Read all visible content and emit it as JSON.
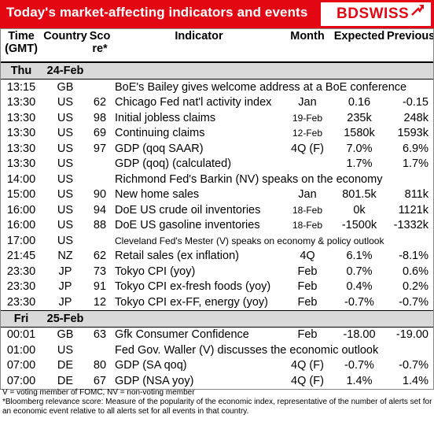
{
  "title": "Today's market-affecting indicators and events",
  "logo": "BDSWISS",
  "colors": {
    "brand_red": "#e30613",
    "day_bg": "#d9d9d9"
  },
  "columns": {
    "time_a": "Time",
    "time_b": "(GMT)",
    "country": "Country",
    "score_a": "Sco",
    "score_b": "re*",
    "indicator": "Indicator",
    "month": "Month",
    "expected": "Expected",
    "previous": "Previous"
  },
  "days": [
    {
      "dow": "Thu",
      "date": "24-Feb",
      "rows": [
        {
          "time": "13:15",
          "country": "GB",
          "score": "",
          "indicator": "BoE's Bailey gives welcome address at a BoE conference",
          "month": "",
          "expected": "",
          "previous": "",
          "span": true
        },
        {
          "time": "13:30",
          "country": "US",
          "score": "62",
          "indicator": "Chicago Fed nat'l activity index",
          "month": "Jan",
          "expected": "0.16",
          "previous": "-0.15"
        },
        {
          "time": "13:30",
          "country": "US",
          "score": "98",
          "indicator": "Initial jobless claims",
          "month": "19-Feb",
          "expected": "235k",
          "previous": "248k",
          "small": true
        },
        {
          "time": "13:30",
          "country": "US",
          "score": "69",
          "indicator": "Continuing claims",
          "month": "12-Feb",
          "expected": "1580k",
          "previous": "1593k",
          "small": true
        },
        {
          "time": "13:30",
          "country": "US",
          "score": "97",
          "indicator": "GDP (qoq SAAR)",
          "month": "4Q (F)",
          "expected": "7.0%",
          "previous": "6.9%"
        },
        {
          "time": "13:30",
          "country": "US",
          "score": "",
          "indicator": "GDP (qoq) (calculated)",
          "month": "",
          "expected": "1.7%",
          "previous": "1.7%"
        },
        {
          "time": "14:00",
          "country": "US",
          "score": "",
          "indicator": "Richmond Fed's Barkin (NV) speaks on the economy",
          "month": "",
          "expected": "",
          "previous": "",
          "span": true
        },
        {
          "time": "15:00",
          "country": "US",
          "score": "90",
          "indicator": "New home sales",
          "month": "Jan",
          "expected": "801.5k",
          "previous": "811k"
        },
        {
          "time": "16:00",
          "country": "US",
          "score": "94",
          "indicator": "DoE US crude oil inventories",
          "month": "18-Feb",
          "expected": "0k",
          "previous": "1121k",
          "small": true
        },
        {
          "time": "16:00",
          "country": "US",
          "score": "88",
          "indicator": "DoE US gasoline inventories",
          "month": "18-Feb",
          "expected": "-1500k",
          "previous": "-1332k",
          "small": true
        },
        {
          "time": "17:00",
          "country": "US",
          "score": "",
          "indicator": "Cleveland Fed's Mester (V) speaks on economy & policy outlook",
          "month": "",
          "expected": "",
          "previous": "",
          "span": true,
          "spansmall": true
        },
        {
          "time": "21:45",
          "country": "NZ",
          "score": "62",
          "indicator": "Retail sales (ex inflation)",
          "month": "4Q",
          "expected": "6.1%",
          "previous": "-8.1%"
        },
        {
          "time": "23:30",
          "country": "JP",
          "score": "73",
          "indicator": "Tokyo CPI (yoy)",
          "month": "Feb",
          "expected": "0.7%",
          "previous": "0.6%"
        },
        {
          "time": "23:30",
          "country": "JP",
          "score": "91",
          "indicator": "Tokyo CPI ex-fresh foods (yoy)",
          "month": "Feb",
          "expected": "0.4%",
          "previous": "0.2%"
        },
        {
          "time": "23:30",
          "country": "JP",
          "score": "12",
          "indicator": "Tokyo CPI ex-FF, energy (yoy)",
          "month": "Feb",
          "expected": "-0.7%",
          "previous": "-0.7%"
        }
      ]
    },
    {
      "dow": "Fri",
      "date": "25-Feb",
      "rows": [
        {
          "time": "00:01",
          "country": "GB",
          "score": "63",
          "indicator": "Gfk Consumer Confidence",
          "month": "Feb",
          "expected": "-18.00",
          "previous": "-19.00"
        },
        {
          "time": "01:00",
          "country": "US",
          "score": "",
          "indicator": "Fed Gov. Waller (V) discusses the economic outlook",
          "month": "",
          "expected": "",
          "previous": "",
          "span": true
        },
        {
          "time": "07:00",
          "country": "DE",
          "score": "80",
          "indicator": "GDP (SA qoq)",
          "month": "4Q (F)",
          "expected": "-0.7%",
          "previous": "-0.7%"
        },
        {
          "time": "07:00",
          "country": "DE",
          "score": "67",
          "indicator": "GDP (NSA yoy)",
          "month": "4Q (F)",
          "expected": "1.4%",
          "previous": "1.4%"
        }
      ]
    }
  ],
  "footnotes": [
    "V = voting member of FOMC, NV = non-voting member",
    "*Bloomberg relevance score:  Measure of the popularity of the economic index, representative of the number of alerts set for an economic event relative to all alerts set for all events in that country."
  ]
}
